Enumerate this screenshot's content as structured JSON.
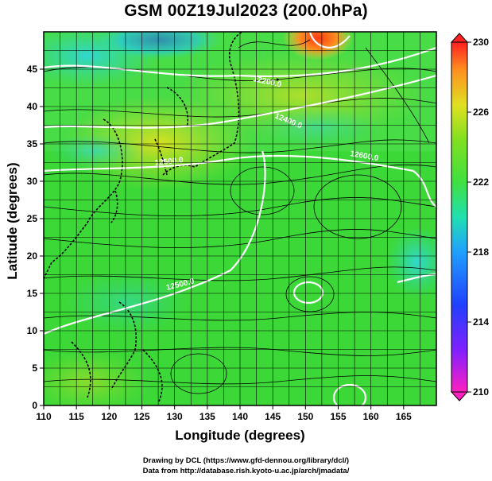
{
  "title": "GSM 00Z19Jul2023 (200.0hPa)",
  "axes": {
    "xlabel": "Longitude (degrees)",
    "ylabel": "Latitude  (degrees)",
    "xticks": [
      "110",
      "115",
      "120",
      "125",
      "130",
      "135",
      "140",
      "145",
      "150",
      "155",
      "160",
      "165"
    ],
    "yticks": [
      "0",
      "5",
      "10",
      "15",
      "20",
      "25",
      "30",
      "35",
      "40",
      "45"
    ],
    "xlim": [
      110,
      170
    ],
    "ylim": [
      0,
      50
    ]
  },
  "colorbar": {
    "labels": [
      "230",
      "226",
      "222",
      "218",
      "214",
      "210"
    ],
    "range": [
      210,
      230
    ]
  },
  "contours": {
    "labels": [
      "12200.0",
      "12400.0",
      "12500.0",
      "12600.0",
      "12500.0"
    ]
  },
  "credits": {
    "line1": "Drawing by DCL (https://www.gfd-dennou.org/library/dcl/)",
    "line2": "Data from http://database.rish.kyoto-u.ac.jp/arch/jmadata/"
  },
  "chart_data": {
    "type": "heatmap",
    "title": "GSM 00Z19Jul2023 (200.0hPa)",
    "xlabel": "Longitude (degrees)",
    "ylabel": "Latitude  (degrees)",
    "xlim": [
      110,
      170
    ],
    "ylim": [
      0,
      50
    ],
    "x_ticks": [
      110,
      115,
      120,
      125,
      130,
      135,
      140,
      145,
      150,
      155,
      160,
      165
    ],
    "y_ticks": [
      0,
      5,
      10,
      15,
      20,
      25,
      30,
      35,
      40,
      45
    ],
    "colorbar_range": [
      210,
      230
    ],
    "colorbar_ticks": [
      210,
      214,
      218,
      222,
      226,
      230
    ],
    "overlays": [
      "geopotential height contours",
      "wind streamlines",
      "coastlines"
    ],
    "grid": true
  }
}
